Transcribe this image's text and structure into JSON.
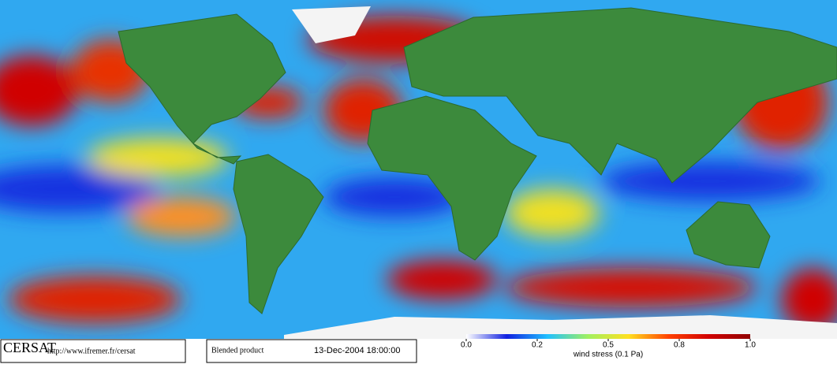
{
  "footer": {
    "brand": "CERSAT",
    "url": "http://www.ifremer.fr/cersat",
    "product": "Blended product",
    "date": "13-Dec-2004 18:00:00"
  },
  "colorbar": {
    "label": "wind stress (0.1 Pa)",
    "ticks": [
      {
        "value": 0,
        "label": "0.0"
      },
      {
        "value": 0.2,
        "label": "0.2"
      },
      {
        "value": 0.5,
        "label": "0.5"
      },
      {
        "value": 0.8,
        "label": "0.8"
      },
      {
        "value": 1,
        "label": "1.0"
      }
    ],
    "colors": [
      "#ffffff",
      "#1020e0",
      "#20c0ff",
      "#a0f060",
      "#ffe020",
      "#ff4000",
      "#d00000",
      "#900000"
    ]
  }
}
